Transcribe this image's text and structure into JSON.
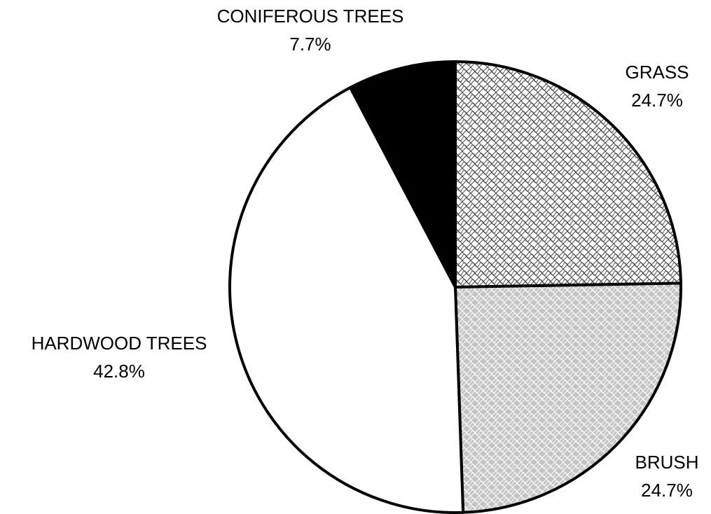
{
  "chart_data": {
    "type": "pie",
    "categories": [
      "GRASS",
      "BRUSH",
      "HARDWOOD TREES",
      "CONIFEROUS TREES"
    ],
    "values": [
      24.7,
      24.7,
      42.8,
      7.7
    ],
    "value_labels": [
      "24.7%",
      "24.7%",
      "42.8%",
      "7.7%"
    ],
    "colors": [
      "#ffffff",
      "#c4c4c4",
      "#ffffff",
      "#000000"
    ],
    "hatched": [
      true,
      true,
      false,
      false
    ]
  }
}
